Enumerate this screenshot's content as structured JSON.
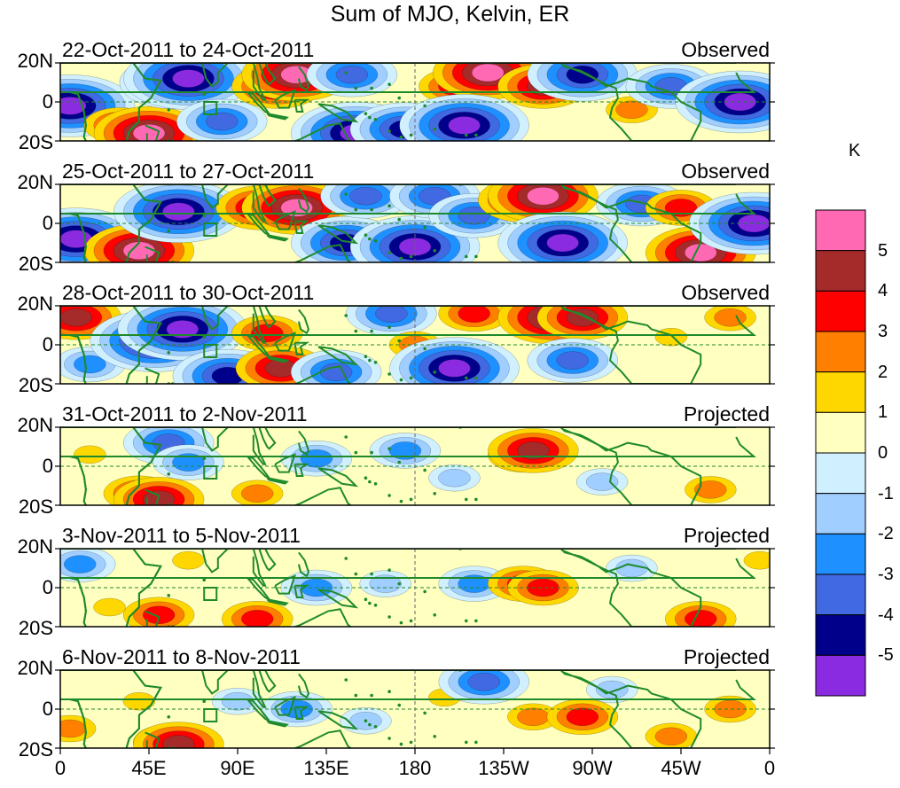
{
  "title": "Sum of MJO, Kelvin, ER",
  "chart_data": {
    "type": "heatmap",
    "title": "Sum of MJO, Kelvin, ER",
    "units": "K",
    "xlabel": "",
    "ylabel": "",
    "x_ticks": [
      "0",
      "45E",
      "90E",
      "135E",
      "180",
      "135W",
      "90W",
      "45W",
      "0"
    ],
    "y_ticks": [
      "20N",
      "0",
      "20S"
    ],
    "xlim": [
      0,
      360
    ],
    "ylim": [
      -20,
      20
    ],
    "colorbar": {
      "label": "K",
      "levels": [
        "5",
        "4",
        "3",
        "2",
        "1",
        "0",
        "-1",
        "-2",
        "-3",
        "-4",
        "-5"
      ],
      "colors": [
        "#ff69b4",
        "#a52a2a",
        "#ff0000",
        "#ff7f00",
        "#ffd700",
        "#ffffc0",
        "#d0f0ff",
        "#a0ceff",
        "#1e90ff",
        "#4169e1",
        "#00008b",
        "#8a2be2"
      ]
    },
    "panels": [
      {
        "date_range": "22-Oct-2011 to 24-Oct-2011",
        "status": "Observed",
        "features": [
          {
            "lon": 5,
            "lat": -2,
            "value": -5
          },
          {
            "lon": 30,
            "lat": -12,
            "value": 3
          },
          {
            "lon": 45,
            "lat": -16,
            "value": 5
          },
          {
            "lon": 58,
            "lat": 10,
            "value": -4
          },
          {
            "lon": 65,
            "lat": 12,
            "value": -5
          },
          {
            "lon": 82,
            "lat": -10,
            "value": -3
          },
          {
            "lon": 110,
            "lat": 8,
            "value": 4
          },
          {
            "lon": 120,
            "lat": 14,
            "value": 5
          },
          {
            "lon": 148,
            "lat": 14,
            "value": -3
          },
          {
            "lon": 150,
            "lat": -16,
            "value": -5
          },
          {
            "lon": 175,
            "lat": -14,
            "value": -4
          },
          {
            "lon": 200,
            "lat": 8,
            "value": 3
          },
          {
            "lon": 217,
            "lat": 15,
            "value": 5
          },
          {
            "lon": 245,
            "lat": 8,
            "value": 4
          },
          {
            "lon": 205,
            "lat": -12,
            "value": -5
          },
          {
            "lon": 265,
            "lat": 14,
            "value": -4
          },
          {
            "lon": 290,
            "lat": -4,
            "value": 2
          },
          {
            "lon": 310,
            "lat": 8,
            "value": -3
          },
          {
            "lon": 345,
            "lat": 0,
            "value": -5
          }
        ]
      },
      {
        "date_range": "25-Oct-2011 to 27-Oct-2011",
        "status": "Observed",
        "features": [
          {
            "lon": 8,
            "lat": -8,
            "value": -5
          },
          {
            "lon": 40,
            "lat": -14,
            "value": 5
          },
          {
            "lon": 60,
            "lat": 6,
            "value": -5
          },
          {
            "lon": 102,
            "lat": 8,
            "value": 4
          },
          {
            "lon": 120,
            "lat": 8,
            "value": 5
          },
          {
            "lon": 145,
            "lat": -10,
            "value": -4
          },
          {
            "lon": 155,
            "lat": 14,
            "value": -3
          },
          {
            "lon": 180,
            "lat": -12,
            "value": -5
          },
          {
            "lon": 190,
            "lat": 14,
            "value": -3
          },
          {
            "lon": 210,
            "lat": 4,
            "value": -3
          },
          {
            "lon": 235,
            "lat": 12,
            "value": 4
          },
          {
            "lon": 245,
            "lat": 14,
            "value": 5
          },
          {
            "lon": 255,
            "lat": -10,
            "value": -5
          },
          {
            "lon": 295,
            "lat": 10,
            "value": -3
          },
          {
            "lon": 315,
            "lat": 8,
            "value": 3
          },
          {
            "lon": 325,
            "lat": -15,
            "value": 5
          },
          {
            "lon": 352,
            "lat": 0,
            "value": -5
          }
        ]
      },
      {
        "date_range": "28-Oct-2011 to 30-Oct-2011",
        "status": "Observed",
        "features": [
          {
            "lon": 8,
            "lat": 14,
            "value": 4
          },
          {
            "lon": 15,
            "lat": -10,
            "value": -2
          },
          {
            "lon": 48,
            "lat": 2,
            "value": -5
          },
          {
            "lon": 62,
            "lat": 8,
            "value": -5
          },
          {
            "lon": 85,
            "lat": -16,
            "value": -4
          },
          {
            "lon": 105,
            "lat": 6,
            "value": 3
          },
          {
            "lon": 112,
            "lat": -12,
            "value": 4
          },
          {
            "lon": 140,
            "lat": -14,
            "value": -3
          },
          {
            "lon": 168,
            "lat": 16,
            "value": -3
          },
          {
            "lon": 180,
            "lat": 0,
            "value": 2
          },
          {
            "lon": 200,
            "lat": -12,
            "value": -5
          },
          {
            "lon": 210,
            "lat": 16,
            "value": 3
          },
          {
            "lon": 250,
            "lat": 14,
            "value": 5
          },
          {
            "lon": 265,
            "lat": 14,
            "value": 4
          },
          {
            "lon": 260,
            "lat": -8,
            "value": -3
          },
          {
            "lon": 310,
            "lat": 4,
            "value": 1
          },
          {
            "lon": 340,
            "lat": 14,
            "value": 2
          }
        ]
      },
      {
        "date_range": "31-Oct-2011 to 2-Nov-2011",
        "status": "Projected",
        "features": [
          {
            "lon": 15,
            "lat": 6,
            "value": 1
          },
          {
            "lon": 40,
            "lat": -14,
            "value": 3
          },
          {
            "lon": 50,
            "lat": -17,
            "value": 4
          },
          {
            "lon": 55,
            "lat": 12,
            "value": -3
          },
          {
            "lon": 65,
            "lat": 2,
            "value": -2
          },
          {
            "lon": 100,
            "lat": -14,
            "value": 2
          },
          {
            "lon": 130,
            "lat": 4,
            "value": -2
          },
          {
            "lon": 175,
            "lat": 8,
            "value": -2
          },
          {
            "lon": 200,
            "lat": -6,
            "value": -1
          },
          {
            "lon": 235,
            "lat": 6,
            "value": 3
          },
          {
            "lon": 240,
            "lat": 8,
            "value": 4
          },
          {
            "lon": 275,
            "lat": -8,
            "value": -1
          },
          {
            "lon": 330,
            "lat": -12,
            "value": 2
          }
        ]
      },
      {
        "date_range": "3-Nov-2011 to 5-Nov-2011",
        "status": "Projected",
        "features": [
          {
            "lon": 10,
            "lat": 12,
            "value": -2
          },
          {
            "lon": 25,
            "lat": -10,
            "value": 1
          },
          {
            "lon": 50,
            "lat": -14,
            "value": 3
          },
          {
            "lon": 65,
            "lat": 14,
            "value": 1
          },
          {
            "lon": 100,
            "lat": -16,
            "value": 3
          },
          {
            "lon": 130,
            "lat": 0,
            "value": -2
          },
          {
            "lon": 165,
            "lat": 2,
            "value": -1
          },
          {
            "lon": 210,
            "lat": 2,
            "value": -2
          },
          {
            "lon": 235,
            "lat": 2,
            "value": 3
          },
          {
            "lon": 245,
            "lat": 0,
            "value": 3
          },
          {
            "lon": 290,
            "lat": 10,
            "value": -1
          },
          {
            "lon": 325,
            "lat": -16,
            "value": 3
          },
          {
            "lon": 355,
            "lat": 14,
            "value": 1
          }
        ]
      },
      {
        "date_range": "6-Nov-2011 to 8-Nov-2011",
        "status": "Projected",
        "features": [
          {
            "lon": 5,
            "lat": -10,
            "value": 2
          },
          {
            "lon": 40,
            "lat": 4,
            "value": 1
          },
          {
            "lon": 55,
            "lat": -17,
            "value": 3
          },
          {
            "lon": 60,
            "lat": -18,
            "value": 4
          },
          {
            "lon": 90,
            "lat": 4,
            "value": -1
          },
          {
            "lon": 120,
            "lat": 0,
            "value": -2
          },
          {
            "lon": 155,
            "lat": -6,
            "value": -1
          },
          {
            "lon": 195,
            "lat": 6,
            "value": 1
          },
          {
            "lon": 215,
            "lat": 14,
            "value": -3
          },
          {
            "lon": 240,
            "lat": -4,
            "value": 2
          },
          {
            "lon": 265,
            "lat": -4,
            "value": 3
          },
          {
            "lon": 280,
            "lat": 10,
            "value": -1
          },
          {
            "lon": 310,
            "lat": -14,
            "value": 2
          },
          {
            "lon": 340,
            "lat": 0,
            "value": 2
          }
        ]
      }
    ]
  }
}
